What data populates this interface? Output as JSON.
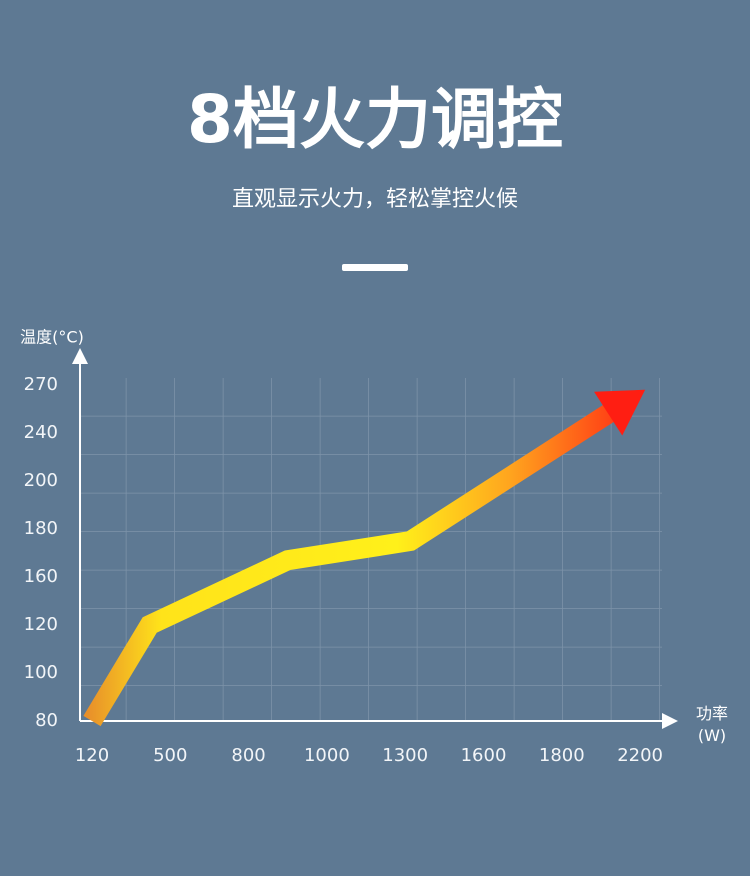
{
  "chart_data": {
    "type": "line",
    "title": "8档火力调控",
    "subtitle": "直观显示火力，轻松掌控火候",
    "y_label": "温度(°C)",
    "x_label": "功率(W)",
    "xticks": [
      120,
      500,
      800,
      1000,
      1300,
      1600,
      1800,
      2200
    ],
    "yticks": [
      80,
      100,
      120,
      160,
      180,
      200,
      240,
      270
    ],
    "x": [
      120,
      400,
      900,
      1320,
      2200
    ],
    "values": [
      80,
      120,
      167,
      175,
      265
    ],
    "grid": true
  }
}
